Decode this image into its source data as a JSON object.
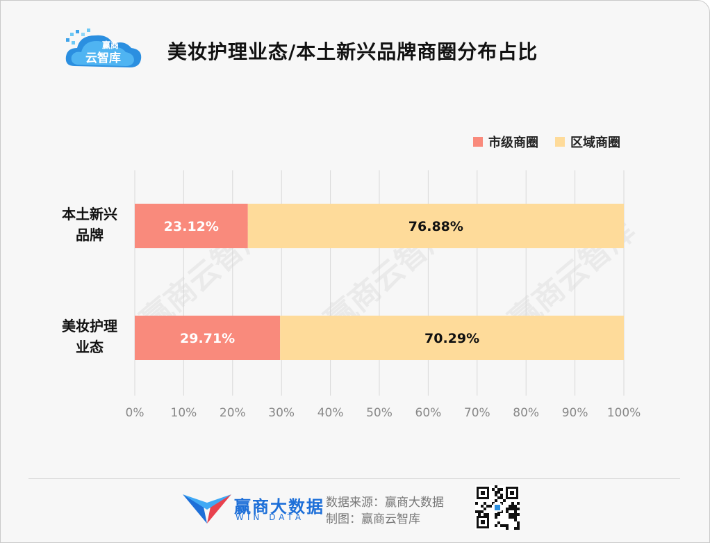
{
  "header": {
    "logo_text_top": "赢商",
    "logo_text_bottom": "云智库",
    "title": "美妆护理业态/本土新兴品牌商圈分布占比"
  },
  "colors": {
    "city": "#f98a7c",
    "district": "#fedb9a",
    "grid": "#d8d8d8"
  },
  "watermark": "赢商云智库",
  "chart_data": {
    "type": "bar",
    "stacked": true,
    "orientation": "horizontal",
    "categories": [
      "本土新兴品牌",
      "美妆护理业态"
    ],
    "category_lines": [
      [
        "本土新兴",
        "品牌"
      ],
      [
        "美妆护理",
        "业态"
      ]
    ],
    "series": [
      {
        "name": "市级商圈",
        "values": [
          23.12,
          29.71
        ],
        "labels": [
          "23.12%",
          "29.71%"
        ]
      },
      {
        "name": "区域商圈",
        "values": [
          76.88,
          70.29
        ],
        "labels": [
          "76.88%",
          "70.29%"
        ]
      }
    ],
    "xlim": [
      0,
      100
    ],
    "x_ticks": [
      "0%",
      "10%",
      "20%",
      "30%",
      "40%",
      "50%",
      "60%",
      "70%",
      "80%",
      "90%",
      "100%"
    ],
    "grid": true,
    "legend_position": "top-right"
  },
  "footer": {
    "brand_cn": "赢商大数据",
    "brand_en": "WIN DATA",
    "source_line": "数据来源：赢商大数据",
    "maker_line": "制图：赢商云智库"
  }
}
